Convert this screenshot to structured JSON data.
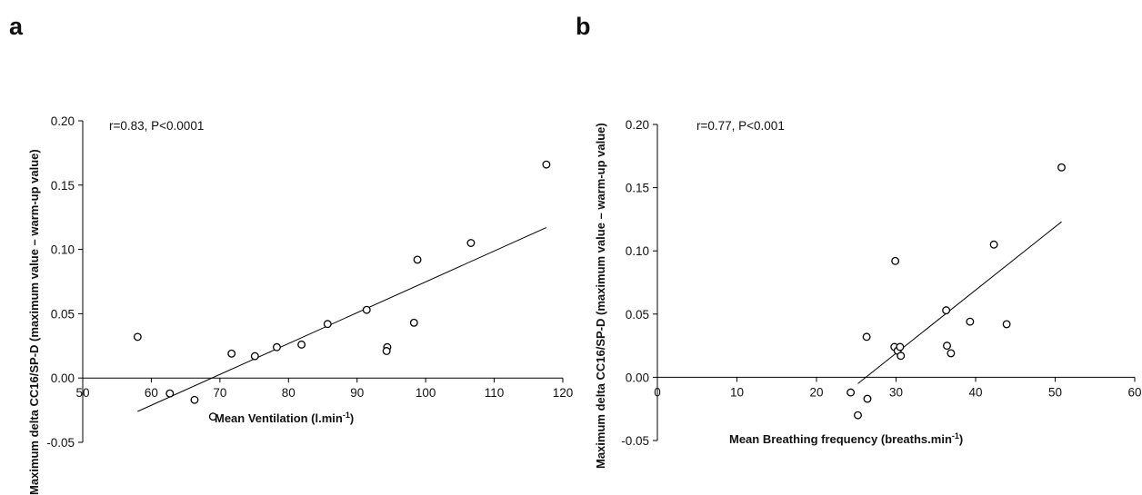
{
  "chart_data": [
    {
      "type": "scatter",
      "panel_label": "a",
      "annotation": "r=0.83, P<0.0001",
      "xlabel": "Mean Ventilation (l.min",
      "xlabel_sup": "-1",
      "xlabel_end": ")",
      "ylabel": "Maximum delta CC16/SP-D  (maximum value – warm-up value)",
      "xlim": [
        50,
        120
      ],
      "ylim": [
        -0.05,
        0.2
      ],
      "x_ticks": [
        "50",
        "60",
        "70",
        "80",
        "90",
        "100",
        "110",
        "120"
      ],
      "y_ticks": [
        "-0.05",
        "0.00",
        "0.05",
        "0.10",
        "0.15",
        "0.20"
      ],
      "points": [
        {
          "x": 58.0,
          "y": 0.032
        },
        {
          "x": 62.7,
          "y": -0.012
        },
        {
          "x": 66.3,
          "y": -0.017
        },
        {
          "x": 69.0,
          "y": -0.03
        },
        {
          "x": 71.7,
          "y": 0.019
        },
        {
          "x": 75.1,
          "y": 0.017
        },
        {
          "x": 78.3,
          "y": 0.024
        },
        {
          "x": 81.9,
          "y": 0.026
        },
        {
          "x": 85.7,
          "y": 0.042
        },
        {
          "x": 91.4,
          "y": 0.053
        },
        {
          "x": 94.4,
          "y": 0.024
        },
        {
          "x": 94.3,
          "y": 0.021
        },
        {
          "x": 98.3,
          "y": 0.043
        },
        {
          "x": 98.8,
          "y": 0.092
        },
        {
          "x": 106.6,
          "y": 0.105
        },
        {
          "x": 117.6,
          "y": 0.166
        }
      ],
      "fit_line": {
        "x": [
          58.0,
          117.6
        ],
        "y": [
          -0.026,
          0.117
        ]
      }
    },
    {
      "type": "scatter",
      "panel_label": "b",
      "annotation": "r=0.77, P<0.001",
      "xlabel": "Mean Breathing frequency (breaths.min",
      "xlabel_sup": "-1",
      "xlabel_end": ")",
      "ylabel": "Maximum delta CC16/SP-D  (maximum value – warm-up value)",
      "xlim": [
        0,
        60
      ],
      "ylim": [
        -0.05,
        0.2
      ],
      "x_ticks": [
        "0",
        "10",
        "20",
        "30",
        "40",
        "50",
        "60"
      ],
      "y_ticks": [
        "-0.05",
        "0.00",
        "0.05",
        "0.10",
        "0.15",
        "0.20"
      ],
      "points": [
        {
          "x": 24.3,
          "y": -0.012
        },
        {
          "x": 25.2,
          "y": -0.03
        },
        {
          "x": 26.3,
          "y": 0.032
        },
        {
          "x": 26.4,
          "y": -0.017
        },
        {
          "x": 29.8,
          "y": 0.024
        },
        {
          "x": 29.9,
          "y": 0.092
        },
        {
          "x": 30.2,
          "y": 0.021
        },
        {
          "x": 30.5,
          "y": 0.024
        },
        {
          "x": 30.6,
          "y": 0.017
        },
        {
          "x": 36.3,
          "y": 0.053
        },
        {
          "x": 36.4,
          "y": 0.025
        },
        {
          "x": 36.9,
          "y": 0.019
        },
        {
          "x": 39.3,
          "y": 0.044
        },
        {
          "x": 42.3,
          "y": 0.105
        },
        {
          "x": 43.9,
          "y": 0.042
        },
        {
          "x": 50.8,
          "y": 0.166
        }
      ],
      "fit_line": {
        "x": [
          25.2,
          50.8
        ],
        "y": [
          -0.005,
          0.123
        ]
      }
    }
  ]
}
